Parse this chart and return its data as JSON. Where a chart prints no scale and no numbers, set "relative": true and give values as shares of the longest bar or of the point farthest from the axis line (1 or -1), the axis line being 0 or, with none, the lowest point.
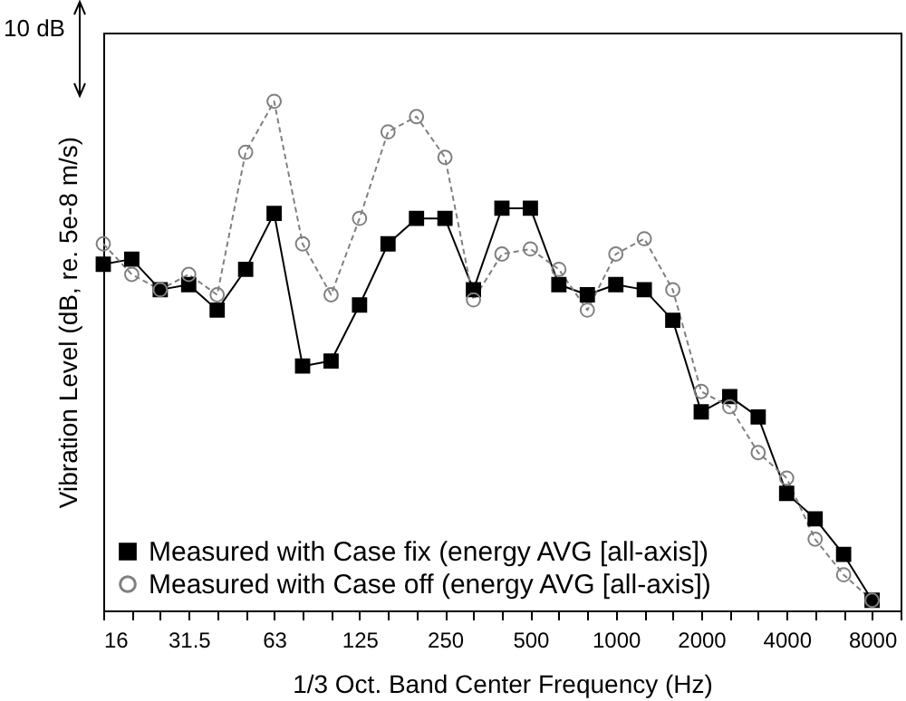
{
  "chart_data": {
    "type": "line",
    "relative": true,
    "xlabel": "1/3 Oct. Band Center Frequency (Hz)",
    "ylabel": "Vibration Level (dB, re. 5e-8 m/s)",
    "annotations": [
      "10 dB"
    ],
    "legend": "bottom left",
    "categories": [
      "16",
      null,
      null,
      "31.5",
      null,
      null,
      "63",
      null,
      null,
      "125",
      null,
      null,
      "250",
      null,
      null,
      "500",
      null,
      null,
      "1000",
      null,
      null,
      "2000",
      null,
      null,
      "4000",
      null,
      null,
      "8000",
      null
    ],
    "series": [
      {
        "name": "Measured with Case fix (energy AVG [all-axis])",
        "color": "#000000",
        "marker": "square",
        "line_style": "solid",
        "values": [
          0.68,
          0.69,
          0.63,
          0.64,
          0.59,
          0.67,
          0.78,
          0.48,
          0.49,
          0.6,
          0.72,
          0.77,
          0.77,
          0.63,
          0.79,
          0.79,
          0.64,
          0.62,
          0.64,
          0.63,
          0.57,
          0.39,
          0.42,
          0.38,
          0.23,
          0.18,
          0.11,
          0.02,
          null
        ]
      },
      {
        "name": "Measured with Case off (energy AVG [all-axis])",
        "color": "#808080",
        "marker": "circle",
        "line_style": "dashed",
        "values": [
          0.72,
          0.66,
          0.63,
          0.66,
          0.62,
          0.9,
          1,
          0.72,
          0.62,
          0.77,
          0.94,
          0.97,
          0.89,
          0.61,
          0.7,
          0.71,
          0.67,
          0.59,
          0.7,
          0.73,
          0.63,
          0.43,
          0.4,
          0.31,
          0.26,
          0.14,
          0.07,
          0.02,
          null
        ]
      }
    ]
  }
}
